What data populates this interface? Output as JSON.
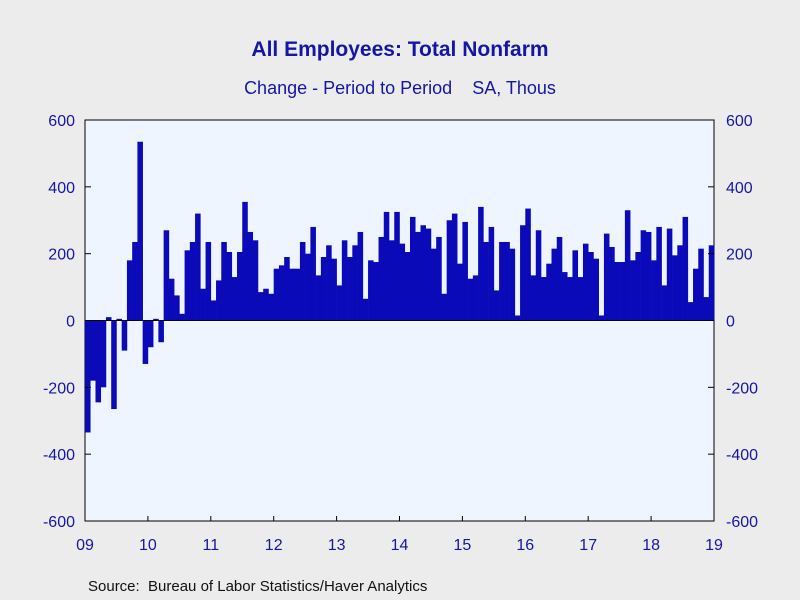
{
  "colors": {
    "bar": "#0a0ab8",
    "text": "#1515a8",
    "plot_bg": "#eef5ff",
    "page_bg": "#ececec"
  },
  "chart_data": {
    "type": "bar",
    "title": "All Employees: Total Nonfarm",
    "subtitle": "Change - Period to Period    SA, Thous",
    "source": "Source:  Bureau of Labor Statistics/Haver Analytics",
    "ylim": [
      -600,
      600
    ],
    "yticks": [
      600,
      400,
      200,
      0,
      -200,
      -400,
      -600
    ],
    "ytick_labels": [
      "600",
      "400",
      "200",
      "0",
      "-200",
      "-400",
      "-600"
    ],
    "right_axis": true,
    "xtick_labels": [
      "09",
      "10",
      "11",
      "12",
      "13",
      "14",
      "15",
      "16",
      "17",
      "18",
      "19"
    ],
    "grid": false,
    "series": [
      {
        "values": [
          -335,
          -180,
          -245,
          -200,
          10,
          -265,
          5,
          -90,
          180,
          235,
          535,
          -130,
          -80,
          5,
          -65,
          270,
          125,
          75,
          20,
          210,
          235,
          320,
          95,
          235,
          60,
          120,
          235,
          205,
          130,
          205,
          355,
          265,
          240,
          85,
          95,
          80,
          155,
          165,
          190,
          155,
          155,
          235,
          200,
          280,
          135,
          190,
          225,
          185,
          105,
          240,
          190,
          225,
          265,
          65,
          180,
          175,
          250,
          325,
          240,
          325,
          230,
          205,
          310,
          265,
          285,
          275,
          215,
          250,
          80,
          300,
          320,
          170,
          295,
          125,
          135,
          340,
          235,
          280,
          90,
          235,
          235,
          215,
          15,
          285,
          335,
          135,
          270,
          130,
          170,
          215,
          250,
          145,
          130,
          210,
          130,
          230,
          205,
          185,
          15,
          260,
          220,
          175,
          175,
          330,
          180,
          205,
          270,
          265,
          180,
          280,
          105,
          275,
          195,
          225,
          310,
          55,
          155,
          215,
          70,
          225
        ]
      }
    ]
  }
}
